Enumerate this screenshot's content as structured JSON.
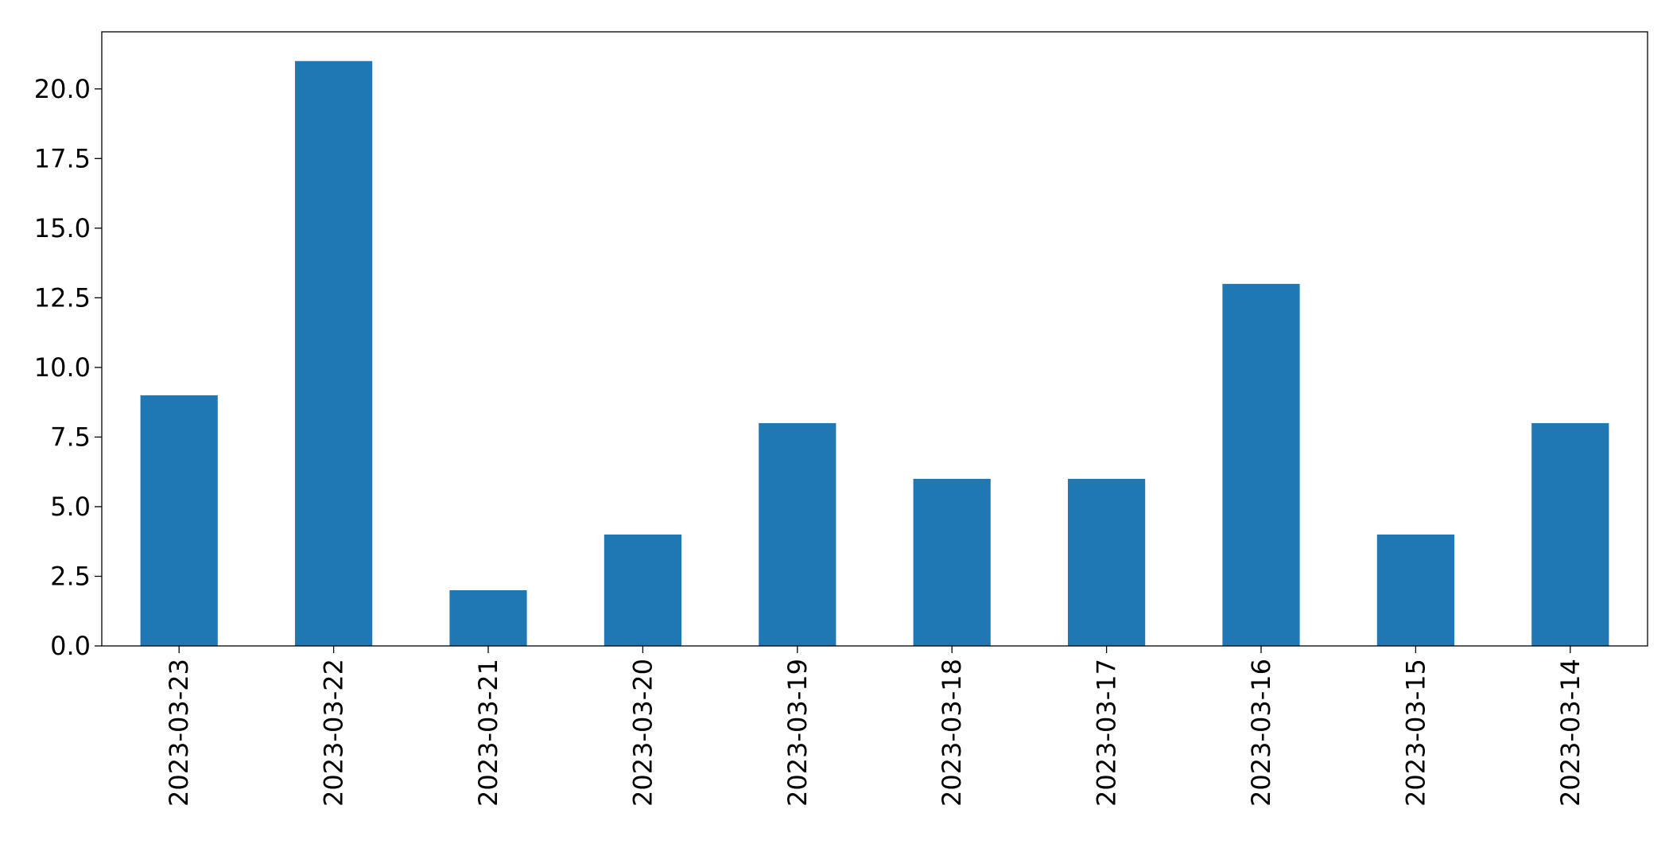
{
  "chart_data": {
    "type": "bar",
    "title": "",
    "xlabel": "",
    "ylabel": "",
    "categories": [
      "2023-03-23",
      "2023-03-22",
      "2023-03-21",
      "2023-03-20",
      "2023-03-19",
      "2023-03-18",
      "2023-03-17",
      "2023-03-16",
      "2023-03-15",
      "2023-03-14"
    ],
    "values": [
      9,
      21,
      2,
      4,
      8,
      6,
      6,
      13,
      4,
      8
    ],
    "ylim": [
      0,
      22.05
    ],
    "yticks": [
      "0.0",
      "2.5",
      "5.0",
      "7.5",
      "10.0",
      "12.5",
      "15.0",
      "17.5",
      "20.0"
    ],
    "ytick_values": [
      0,
      2.5,
      5,
      7.5,
      10,
      12.5,
      15,
      17.5,
      20
    ],
    "bar_color": "#1f77b4",
    "grid": false,
    "legend": "none"
  }
}
